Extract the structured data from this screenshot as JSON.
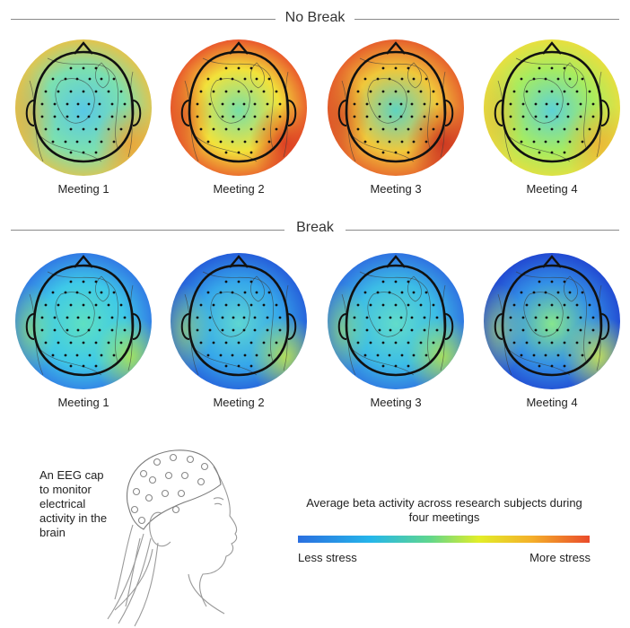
{
  "sections": [
    {
      "title": "No Break",
      "maps": [
        {
          "label": "Meeting 1",
          "colors": {
            "edge": "#f0c040",
            "mid": "#7be0b0",
            "center": "#57c8e6",
            "hot": "#f3a030"
          }
        },
        {
          "label": "Meeting 2",
          "colors": {
            "edge": "#e8452a",
            "mid": "#f2e23a",
            "center": "#77e0a8",
            "hot": "#d93020"
          }
        },
        {
          "label": "Meeting 3",
          "colors": {
            "edge": "#e5512a",
            "mid": "#f0c83a",
            "center": "#5fd4c0",
            "hot": "#c8281e"
          }
        },
        {
          "label": "Meeting 4",
          "colors": {
            "edge": "#f1dd3a",
            "mid": "#a6ec60",
            "center": "#5cd2d6",
            "hot": "#f0b032"
          }
        }
      ]
    },
    {
      "title": "Break",
      "maps": [
        {
          "label": "Meeting 1",
          "colors": {
            "edge": "#2f6fe4",
            "mid": "#3ec9e8",
            "center": "#5ee0c2",
            "hot": "#b4ef4a"
          }
        },
        {
          "label": "Meeting 2",
          "colors": {
            "edge": "#2354d8",
            "mid": "#36a8ea",
            "center": "#5ed6d2",
            "hot": "#c8ee44"
          }
        },
        {
          "label": "Meeting 3",
          "colors": {
            "edge": "#2d68e0",
            "mid": "#3cbde6",
            "center": "#62dcca",
            "hot": "#b8ec4a"
          }
        },
        {
          "label": "Meeting 4",
          "colors": {
            "edge": "#1f3fcf",
            "mid": "#3390e6",
            "center": "#86e68e",
            "hot": "#d6f04a"
          }
        }
      ]
    }
  ],
  "cap_note": "An EEG cap to monitor electrical activity in the brain",
  "legend": {
    "title": "Average beta activity across research subjects during four meetings",
    "low_label": "Less stress",
    "high_label": "More stress"
  }
}
